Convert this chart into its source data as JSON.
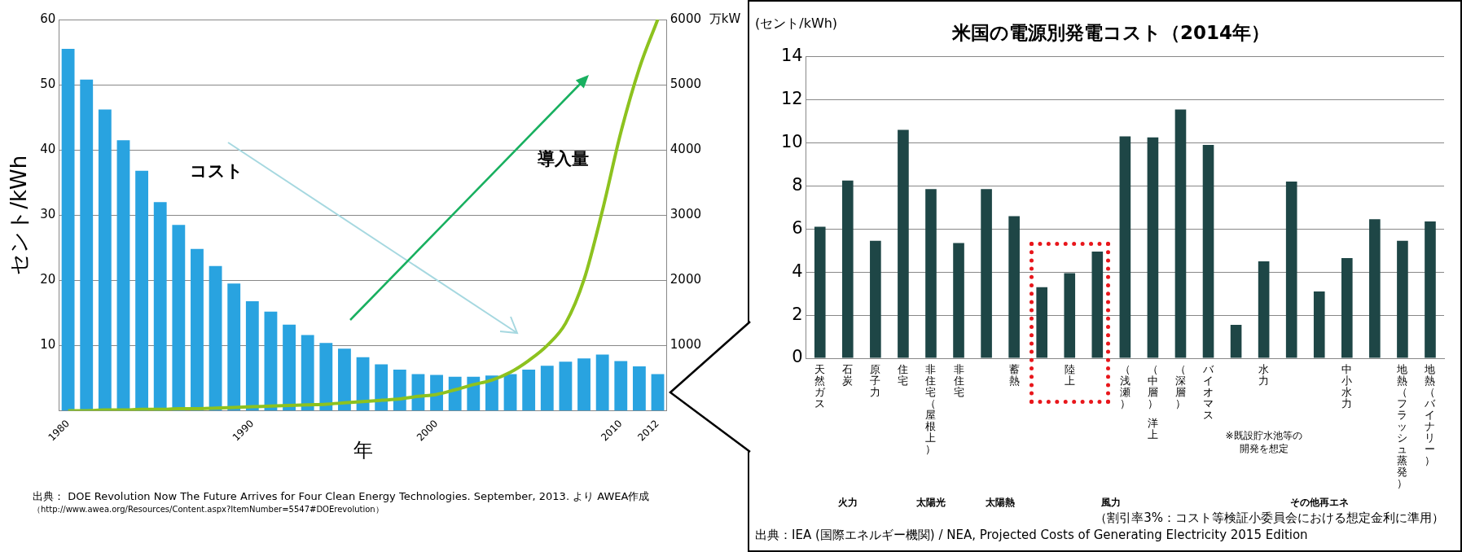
{
  "chart_data": [
    {
      "type": "bar",
      "ylabel": "セント/kWh",
      "xlabel": "年",
      "y2label": "万kW",
      "grid": "y",
      "marker": "none",
      "categories": [
        "1980",
        null,
        null,
        null,
        null,
        null,
        null,
        null,
        null,
        null,
        "1990",
        null,
        null,
        null,
        null,
        null,
        null,
        null,
        null,
        null,
        "2000",
        null,
        null,
        null,
        null,
        null,
        null,
        null,
        null,
        null,
        "2010",
        null,
        "2012"
      ],
      "series": [
        {
          "name": "コスト",
          "color": "#29a3e0",
          "values": [
            55.5,
            50.8,
            46.2,
            41.5,
            36.8,
            32.0,
            28.5,
            24.8,
            22.2,
            19.5,
            16.8,
            15.2,
            13.2,
            11.6,
            10.4,
            9.5,
            8.2,
            7.1,
            6.3,
            5.6,
            5.5,
            5.2,
            5.2,
            5.4,
            5.6,
            6.3,
            6.9,
            7.5,
            8.0,
            8.6,
            7.6,
            6.8,
            5.6
          ]
        },
        {
          "name": "導入量",
          "type": "line",
          "axis": "y2",
          "color": "#8dc21f",
          "values": [
            0,
            0,
            10,
            10,
            20,
            20,
            30,
            30,
            40,
            50,
            60,
            70,
            80,
            90,
            100,
            120,
            140,
            160,
            180,
            220,
            250,
            320,
            400,
            470,
            590,
            770,
            1000,
            1340,
            2010,
            3070,
            4270,
            5250,
            6000
          ]
        }
      ],
      "ylim": [
        0,
        60
      ],
      "yticks": [
        10,
        20,
        30,
        40,
        50,
        60
      ],
      "y2lim": [
        0,
        6000
      ],
      "y2ticks": [
        1000,
        2000,
        3000,
        4000,
        5000,
        6000
      ],
      "annotations": [
        "出典： DOE Revolution Now The Future Arrives for Four Clean Energy Technologies. September, 2013. より AWEA作成",
        "（http://www.awea.org/Resources/Content.aspx?ItemNumber=5547#DOErevolution）"
      ]
    },
    {
      "type": "bar",
      "title": "米国の電源別発電コスト（2014年）",
      "ylabel": "(セント/kWh)",
      "grid": "y",
      "color": "#1e4646",
      "categories": [
        "天然ガス",
        "石炭",
        "原子力",
        "住宅",
        "非住宅（屋根上）",
        "非住宅",
        null,
        "蓄熱",
        null,
        "陸上",
        null,
        "（浅瀬）",
        "（中層）",
        "（深層）",
        "バイオマス",
        null,
        "水力",
        null,
        null,
        "中小水力",
        null,
        "地熱（フラッシュ蒸発）",
        "地熱（バイナリー）"
      ],
      "values": [
        6.1,
        8.25,
        5.45,
        10.6,
        7.85,
        5.35,
        7.85,
        6.6,
        3.3,
        3.95,
        4.95,
        10.3,
        10.25,
        11.55,
        9.9,
        1.55,
        4.5,
        8.2,
        3.1,
        4.65,
        6.45,
        5.45,
        6.35
      ],
      "ylim": [
        0,
        14
      ],
      "yticks": [
        0,
        2,
        4,
        6,
        8,
        10,
        12,
        14
      ],
      "annotations": [
        "洋上",
        "※既設貯水池等の開発を想定",
        "火力",
        "太陽光",
        "太陽熱",
        "風力",
        "その他再エネ",
        "（割引率3%：コスト等検証小委員会における想定金利に準用）",
        "出典：IEA (国際エネルギー機関) / NEA, Projected Costs of Generating Electricity 2015 Edition"
      ]
    }
  ]
}
